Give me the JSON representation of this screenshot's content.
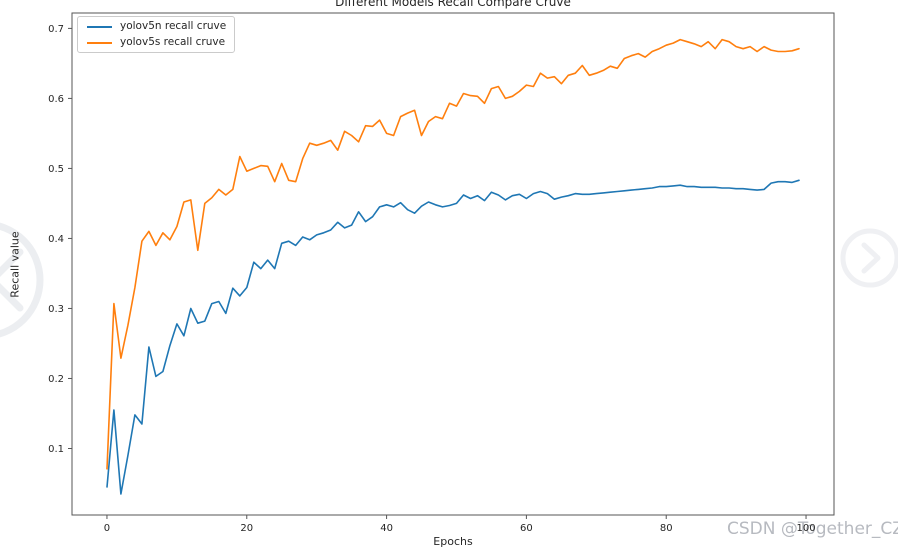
{
  "page": {
    "background": "#ffffff"
  },
  "watermark": {
    "text": "CSDN @Together_CZ",
    "color": "#b7bac0"
  },
  "carousel": {
    "prev": {
      "icon": "chevron-left-icon"
    },
    "next": {
      "icon": "chevron-right-icon"
    }
  },
  "chart_data": {
    "type": "line",
    "title": "Different Models Recall Compare Cruve",
    "xlabel": "Epochs",
    "ylabel": "Recall value",
    "x_ticks": [
      0,
      20,
      40,
      60,
      80,
      100
    ],
    "y_ticks": [
      0.1,
      0.2,
      0.3,
      0.4,
      0.5,
      0.6,
      0.7
    ],
    "xlim": [
      -5,
      104
    ],
    "ylim": [
      0.005,
      0.722
    ],
    "grid": false,
    "legend_position": "upper left",
    "epochs": {
      "start": 0,
      "end": 99,
      "step": 1
    },
    "series": [
      {
        "name": "yolov5n recall cruve",
        "color": "#1f77b4",
        "values": [
          0.045,
          0.155,
          0.035,
          0.09,
          0.148,
          0.135,
          0.245,
          0.203,
          0.21,
          0.247,
          0.278,
          0.261,
          0.3,
          0.279,
          0.282,
          0.307,
          0.31,
          0.293,
          0.329,
          0.318,
          0.33,
          0.366,
          0.357,
          0.369,
          0.357,
          0.393,
          0.396,
          0.39,
          0.402,
          0.398,
          0.405,
          0.408,
          0.412,
          0.423,
          0.415,
          0.419,
          0.438,
          0.424,
          0.431,
          0.445,
          0.448,
          0.445,
          0.451,
          0.441,
          0.436,
          0.446,
          0.452,
          0.448,
          0.445,
          0.447,
          0.45,
          0.462,
          0.457,
          0.461,
          0.454,
          0.466,
          0.462,
          0.455,
          0.461,
          0.463,
          0.457,
          0.464,
          0.467,
          0.464,
          0.456,
          0.459,
          0.461,
          0.464,
          0.463,
          0.463,
          0.464,
          0.465,
          0.466,
          0.467,
          0.468,
          0.469,
          0.47,
          0.471,
          0.472,
          0.474,
          0.474,
          0.475,
          0.476,
          0.474,
          0.474,
          0.473,
          0.473,
          0.473,
          0.472,
          0.472,
          0.471,
          0.471,
          0.47,
          0.469,
          0.47,
          0.479,
          0.481,
          0.481,
          0.48,
          0.483
        ]
      },
      {
        "name": "yolov5s recall cruve",
        "color": "#ff7f0e",
        "values": [
          0.071,
          0.307,
          0.229,
          0.276,
          0.33,
          0.396,
          0.41,
          0.39,
          0.408,
          0.398,
          0.417,
          0.452,
          0.455,
          0.383,
          0.45,
          0.458,
          0.47,
          0.462,
          0.47,
          0.517,
          0.496,
          0.5,
          0.504,
          0.503,
          0.481,
          0.507,
          0.483,
          0.481,
          0.514,
          0.536,
          0.533,
          0.536,
          0.54,
          0.526,
          0.553,
          0.547,
          0.538,
          0.561,
          0.56,
          0.569,
          0.55,
          0.547,
          0.574,
          0.579,
          0.583,
          0.547,
          0.567,
          0.574,
          0.571,
          0.593,
          0.589,
          0.607,
          0.604,
          0.603,
          0.593,
          0.614,
          0.617,
          0.6,
          0.603,
          0.61,
          0.619,
          0.617,
          0.636,
          0.629,
          0.631,
          0.621,
          0.633,
          0.636,
          0.647,
          0.633,
          0.636,
          0.64,
          0.646,
          0.643,
          0.657,
          0.661,
          0.664,
          0.659,
          0.667,
          0.671,
          0.676,
          0.679,
          0.684,
          0.681,
          0.678,
          0.674,
          0.681,
          0.671,
          0.684,
          0.681,
          0.674,
          0.671,
          0.674,
          0.667,
          0.674,
          0.669,
          0.667,
          0.667,
          0.668,
          0.671
        ]
      }
    ]
  }
}
